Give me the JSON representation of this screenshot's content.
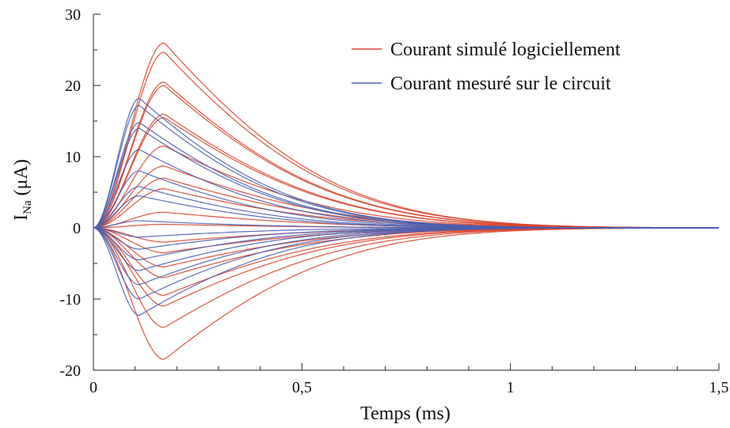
{
  "chart_data": {
    "type": "line",
    "xlabel": "Temps (ms)",
    "ylabel_main": "I",
    "ylabel_sub": "Na",
    "ylabel_unit": " (μA)",
    "xlim": [
      0,
      1.5
    ],
    "ylim": [
      -20,
      30
    ],
    "x_ticks": [
      0,
      0.5,
      1,
      1.5
    ],
    "x_tick_labels": [
      "0",
      "0,5",
      "1",
      "1,5"
    ],
    "y_ticks": [
      -20,
      -10,
      0,
      10,
      20,
      30
    ],
    "y_tick_labels": [
      "-20",
      "-10",
      "0",
      "10",
      "20",
      "30"
    ],
    "grid": false,
    "legend_position": "top-right",
    "series": [
      {
        "name": "Courant simulé logiciellement",
        "color": "#d9442b",
        "peak_time_ms": 0.17,
        "decay_ms": 0.3,
        "peaks": [
          26,
          24.7,
          20.5,
          20,
          16,
          15.5,
          11.5,
          8.7,
          7,
          5.5,
          2.2,
          0.5,
          -2,
          -3.5,
          -5.5,
          -7,
          -9.5,
          -11,
          -14,
          -18.5
        ]
      },
      {
        "name": "Courant mesuré sur le circuit",
        "color": "#4a5fb0",
        "peak_time_ms": 0.11,
        "decay_ms": 0.27,
        "peaks": [
          18.2,
          17.2,
          14.8,
          14,
          11,
          8,
          5.8,
          4.5,
          1,
          -1.3,
          -3,
          -4.5,
          -6,
          -8,
          -10,
          -12.3
        ]
      }
    ]
  }
}
